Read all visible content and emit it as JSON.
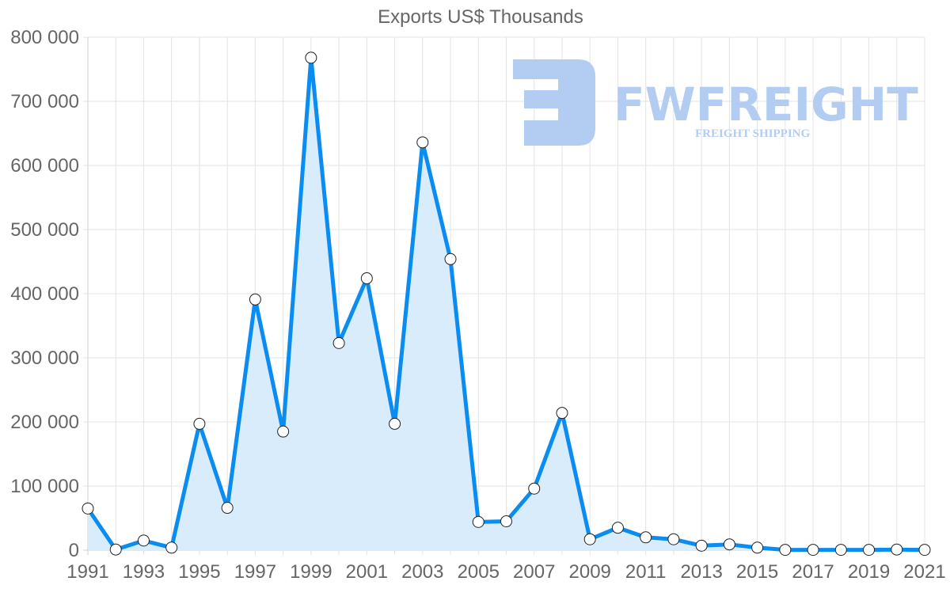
{
  "chart_data": {
    "type": "area",
    "title": "Exports US$ Thousands",
    "xlabel": "",
    "ylabel": "",
    "ylim": [
      0,
      800000
    ],
    "grid": true,
    "legend": "none",
    "x": [
      1991,
      1992,
      1993,
      1994,
      1995,
      1996,
      1997,
      1998,
      1999,
      2000,
      2001,
      2002,
      2003,
      2004,
      2005,
      2006,
      2007,
      2008,
      2009,
      2010,
      2011,
      2012,
      2013,
      2014,
      2015,
      2016,
      2017,
      2018,
      2019,
      2020,
      2021
    ],
    "series": [
      {
        "name": "Exports US$ Thousands",
        "color": "#0a8cf0",
        "fill": "#d8ecfc",
        "values": [
          65000,
          1000,
          15000,
          4000,
          197000,
          66000,
          391000,
          185000,
          768000,
          323000,
          424000,
          197000,
          636000,
          454000,
          44000,
          45000,
          96000,
          214000,
          17000,
          35000,
          20000,
          17000,
          7000,
          9000,
          4000,
          500,
          500,
          500,
          500,
          1000,
          500
        ]
      }
    ],
    "y_ticks": [
      "0",
      "100 000",
      "200 000",
      "300 000",
      "400 000",
      "500 000",
      "600 000",
      "700 000",
      "800 000"
    ],
    "x_ticks": [
      "1991",
      "1993",
      "1995",
      "1997",
      "1999",
      "2001",
      "2003",
      "2005",
      "2007",
      "2009",
      "2011",
      "2013",
      "2015",
      "2017",
      "2019",
      "2021"
    ]
  },
  "watermark": {
    "brand": "FWFREIGHT",
    "tagline": "FREIGHT SHIPPING",
    "color": "#b3cdf2"
  }
}
